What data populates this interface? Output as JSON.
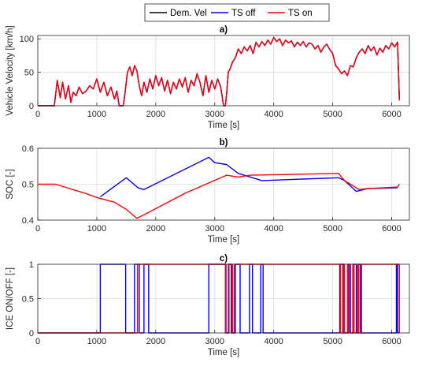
{
  "legend": {
    "entries": [
      {
        "label": "Dem. Vel",
        "color": "#000000"
      },
      {
        "label": "TS off",
        "color": "#0000ff"
      },
      {
        "label": "TS on",
        "color": "#ff0000"
      }
    ],
    "placement": "top-center"
  },
  "chart_data": [
    {
      "type": "line",
      "title": "a)",
      "xlabel": "Time [s]",
      "ylabel": "Vehicle Velocity [km/h]",
      "xlim": [
        0,
        6300
      ],
      "ylim": [
        0,
        105
      ],
      "xticks": [
        "0",
        "1000",
        "2000",
        "3000",
        "4000",
        "5000",
        "6000"
      ],
      "yticks": [
        "0",
        "50",
        "100"
      ],
      "grid": true,
      "series": [
        {
          "name": "Dem. Vel",
          "color": "#000000",
          "x": [
            0,
            280,
            330,
            380,
            420,
            470,
            520,
            560,
            600,
            650,
            700,
            760,
            820,
            880,
            940,
            1000,
            1060,
            1120,
            1180,
            1240,
            1300,
            1340,
            1380,
            1420,
            1450,
            1480,
            1520,
            1560,
            1600,
            1640,
            1680,
            1720,
            1760,
            1800,
            1850,
            1900,
            1950,
            2000,
            2050,
            2100,
            2150,
            2200,
            2250,
            2300,
            2350,
            2400,
            2450,
            2500,
            2550,
            2600,
            2650,
            2700,
            2750,
            2800,
            2850,
            2900,
            2950,
            3000,
            3050,
            3100,
            3150,
            3180,
            3200,
            3230,
            3260,
            3300,
            3350,
            3400,
            3450,
            3500,
            3550,
            3600,
            3650,
            3700,
            3750,
            3800,
            3850,
            3900,
            3950,
            4000,
            4050,
            4100,
            4150,
            4200,
            4250,
            4300,
            4350,
            4400,
            4450,
            4500,
            4550,
            4600,
            4650,
            4700,
            4750,
            4800,
            4850,
            4900,
            4950,
            5000,
            5050,
            5100,
            5150,
            5200,
            5250,
            5300,
            5350,
            5400,
            5450,
            5500,
            5550,
            5600,
            5650,
            5700,
            5750,
            5800,
            5850,
            5900,
            5950,
            6000,
            6050,
            6100,
            6130
          ],
          "y": [
            0,
            0,
            38,
            12,
            35,
            10,
            30,
            5,
            20,
            15,
            28,
            18,
            22,
            30,
            25,
            40,
            20,
            35,
            15,
            28,
            10,
            22,
            0,
            0,
            0,
            20,
            50,
            58,
            45,
            60,
            52,
            30,
            15,
            35,
            20,
            40,
            25,
            45,
            30,
            42,
            22,
            38,
            18,
            35,
            25,
            40,
            28,
            42,
            20,
            38,
            30,
            48,
            35,
            15,
            45,
            20,
            38,
            25,
            40,
            28,
            0,
            0,
            15,
            50,
            55,
            65,
            72,
            85,
            78,
            88,
            82,
            90,
            78,
            95,
            88,
            96,
            90,
            98,
            92,
            102,
            96,
            100,
            90,
            98,
            94,
            97,
            88,
            95,
            90,
            96,
            88,
            94,
            92,
            85,
            90,
            80,
            88,
            92,
            84,
            78,
            60,
            55,
            48,
            52,
            45,
            60,
            58,
            72,
            80,
            85,
            78,
            90,
            82,
            88,
            76,
            86,
            80,
            90,
            85,
            94,
            88,
            95,
            8
          ]
        },
        {
          "name": "TS off",
          "color": "#0000ff",
          "x": [
            0,
            280,
            330,
            380,
            420,
            470,
            520,
            560,
            600,
            650,
            700,
            760,
            820,
            880,
            940,
            1000,
            1060,
            1120,
            1180,
            1240,
            1300,
            1340,
            1380,
            1420,
            1450,
            1480,
            1520,
            1560,
            1600,
            1640,
            1680,
            1720,
            1760,
            1800,
            1850,
            1900,
            1950,
            2000,
            2050,
            2100,
            2150,
            2200,
            2250,
            2300,
            2350,
            2400,
            2450,
            2500,
            2550,
            2600,
            2650,
            2700,
            2750,
            2800,
            2850,
            2900,
            2950,
            3000,
            3050,
            3100,
            3150,
            3180,
            3200,
            3230,
            3260,
            3300,
            3350,
            3400,
            3450,
            3500,
            3550,
            3600,
            3650,
            3700,
            3750,
            3800,
            3850,
            3900,
            3950,
            4000,
            4050,
            4100,
            4150,
            4200,
            4250,
            4300,
            4350,
            4400,
            4450,
            4500,
            4550,
            4600,
            4650,
            4700,
            4750,
            4800,
            4850,
            4900,
            4950,
            5000,
            5050,
            5100,
            5150,
            5200,
            5250,
            5300,
            5350,
            5400,
            5450,
            5500,
            5550,
            5600,
            5650,
            5700,
            5750,
            5800,
            5850,
            5900,
            5950,
            6000,
            6050,
            6100,
            6130
          ],
          "y": [
            0,
            0,
            38,
            12,
            35,
            10,
            30,
            5,
            20,
            15,
            28,
            18,
            22,
            30,
            25,
            40,
            20,
            35,
            15,
            28,
            10,
            22,
            0,
            0,
            0,
            20,
            50,
            58,
            45,
            60,
            52,
            30,
            15,
            35,
            20,
            40,
            25,
            45,
            30,
            42,
            22,
            38,
            18,
            35,
            25,
            40,
            28,
            42,
            20,
            38,
            30,
            48,
            35,
            15,
            45,
            20,
            38,
            25,
            40,
            28,
            0,
            0,
            15,
            50,
            55,
            65,
            72,
            85,
            78,
            88,
            82,
            90,
            78,
            95,
            88,
            96,
            90,
            98,
            92,
            102,
            96,
            100,
            90,
            98,
            94,
            97,
            88,
            95,
            90,
            96,
            88,
            94,
            92,
            85,
            90,
            80,
            88,
            92,
            84,
            78,
            60,
            55,
            48,
            52,
            45,
            60,
            58,
            72,
            80,
            85,
            78,
            90,
            82,
            88,
            76,
            86,
            80,
            90,
            85,
            94,
            88,
            95,
            8
          ]
        },
        {
          "name": "TS on",
          "color": "#ff0000",
          "x": [
            0,
            280,
            330,
            380,
            420,
            470,
            520,
            560,
            600,
            650,
            700,
            760,
            820,
            880,
            940,
            1000,
            1060,
            1120,
            1180,
            1240,
            1300,
            1340,
            1380,
            1420,
            1450,
            1480,
            1520,
            1560,
            1600,
            1640,
            1680,
            1720,
            1760,
            1800,
            1850,
            1900,
            1950,
            2000,
            2050,
            2100,
            2150,
            2200,
            2250,
            2300,
            2350,
            2400,
            2450,
            2500,
            2550,
            2600,
            2650,
            2700,
            2750,
            2800,
            2850,
            2900,
            2950,
            3000,
            3050,
            3100,
            3150,
            3180,
            3200,
            3230,
            3260,
            3300,
            3350,
            3400,
            3450,
            3500,
            3550,
            3600,
            3650,
            3700,
            3750,
            3800,
            3850,
            3900,
            3950,
            4000,
            4050,
            4100,
            4150,
            4200,
            4250,
            4300,
            4350,
            4400,
            4450,
            4500,
            4550,
            4600,
            4650,
            4700,
            4750,
            4800,
            4850,
            4900,
            4950,
            5000,
            5050,
            5100,
            5150,
            5200,
            5250,
            5300,
            5350,
            5400,
            5450,
            5500,
            5550,
            5600,
            5650,
            5700,
            5750,
            5800,
            5850,
            5900,
            5950,
            6000,
            6050,
            6100,
            6130
          ],
          "y": [
            0,
            0,
            38,
            12,
            35,
            10,
            30,
            5,
            20,
            15,
            28,
            18,
            22,
            30,
            25,
            40,
            20,
            35,
            15,
            28,
            10,
            22,
            0,
            0,
            0,
            20,
            50,
            58,
            45,
            60,
            52,
            30,
            15,
            35,
            20,
            40,
            25,
            45,
            30,
            42,
            22,
            38,
            18,
            35,
            25,
            40,
            28,
            42,
            20,
            38,
            30,
            48,
            35,
            15,
            45,
            20,
            38,
            25,
            40,
            28,
            0,
            0,
            15,
            50,
            55,
            65,
            72,
            85,
            78,
            88,
            82,
            90,
            78,
            95,
            88,
            96,
            90,
            98,
            92,
            102,
            96,
            100,
            90,
            98,
            94,
            97,
            88,
            95,
            90,
            96,
            88,
            94,
            92,
            85,
            90,
            80,
            88,
            92,
            84,
            78,
            60,
            55,
            48,
            52,
            45,
            60,
            58,
            72,
            80,
            85,
            78,
            90,
            82,
            88,
            76,
            86,
            80,
            90,
            85,
            94,
            88,
            95,
            8
          ]
        }
      ]
    },
    {
      "type": "line",
      "title": "b)",
      "xlabel": "Time [s]",
      "ylabel": "SOC [-]",
      "xlim": [
        0,
        6300
      ],
      "ylim": [
        0.4,
        0.6
      ],
      "xticks": [
        "0",
        "1000",
        "2000",
        "3000",
        "4000",
        "5000",
        "6000"
      ],
      "yticks": [
        "0.4",
        "0.5",
        "0.6"
      ],
      "grid": true,
      "series": [
        {
          "name": "TS off",
          "color": "#0000ff",
          "x": [
            1060,
            1500,
            1700,
            1800,
            2900,
            3000,
            3200,
            3400,
            3800,
            5100,
            5200,
            5400,
            5600,
            6100
          ],
          "y": [
            0.465,
            0.518,
            0.49,
            0.485,
            0.575,
            0.56,
            0.555,
            0.53,
            0.51,
            0.518,
            0.51,
            0.48,
            0.488,
            0.49
          ]
        },
        {
          "name": "TS on",
          "color": "#ff0000",
          "x": [
            0,
            300,
            800,
            1000,
            1300,
            1500,
            1680,
            1800,
            2500,
            3200,
            3400,
            3600,
            5100,
            5200,
            5450,
            5600,
            6100,
            6130
          ],
          "y": [
            0.5,
            0.5,
            0.475,
            0.463,
            0.45,
            0.43,
            0.405,
            0.415,
            0.475,
            0.525,
            0.52,
            0.525,
            0.53,
            0.51,
            0.485,
            0.488,
            0.492,
            0.5
          ]
        }
      ]
    },
    {
      "type": "line",
      "title": "c)",
      "xlabel": "Time [s]",
      "ylabel": "ICE ON/OFF [-]",
      "xlim": [
        0,
        6300
      ],
      "ylim": [
        0,
        1
      ],
      "xticks": [
        "0",
        "1000",
        "2000",
        "3000",
        "4000",
        "5000",
        "6000"
      ],
      "yticks": [
        "0",
        "0.5",
        "1"
      ],
      "grid": true,
      "series": [
        {
          "name": "TS off",
          "color": "#0000ff",
          "intervals_on": [
            [
              1060,
              1490
            ],
            [
              1640,
              1720
            ],
            [
              1800,
              1880
            ],
            [
              2900,
              3190
            ],
            [
              3240,
              3280
            ],
            [
              3350,
              3430
            ],
            [
              3590,
              3640
            ],
            [
              3780,
              3820
            ],
            [
              5120,
              5180
            ],
            [
              5260,
              5300
            ],
            [
              5360,
              5400
            ],
            [
              5440,
              5470
            ],
            [
              6080,
              6100
            ]
          ],
          "xmax": 6130
        },
        {
          "name": "TS on",
          "color": "#ff0000",
          "intervals_on": [
            [
              1690,
              3180
            ],
            [
              3230,
              3300
            ],
            [
              3330,
              5130
            ],
            [
              5170,
              5200
            ],
            [
              5250,
              5280
            ],
            [
              5340,
              5360
            ],
            [
              5420,
              5440
            ],
            [
              5490,
              6130
            ]
          ],
          "xmax": 6130
        }
      ]
    }
  ]
}
